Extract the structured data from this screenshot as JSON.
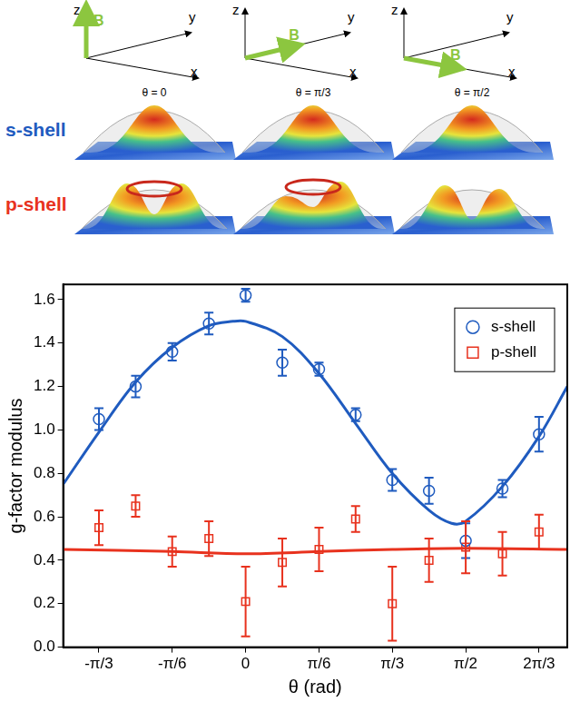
{
  "diagram": {
    "vector_label": "B",
    "axis_labels": [
      "x",
      "y",
      "z"
    ],
    "columns": [
      "θ = 0",
      "θ = π/3",
      "θ = π/2"
    ],
    "rows": [
      {
        "label": "s-shell",
        "color": "#1f5bbf"
      },
      {
        "label": "p-shell",
        "color": "#e8321e"
      }
    ]
  },
  "chart_data": {
    "type": "scatter",
    "x_label": "θ (rad)",
    "y_label": "g-factor modulus",
    "xlim": [
      -1.302,
      2.296
    ],
    "ylim": [
      0,
      1.67
    ],
    "xticks": [
      {
        "value": -1.0472,
        "label": "-π/3"
      },
      {
        "value": -0.5236,
        "label": "-π/6"
      },
      0,
      {
        "value": 0.5236,
        "label": "π/6"
      },
      {
        "value": 1.0472,
        "label": "π/3"
      },
      {
        "value": 1.5708,
        "label": "π/2"
      },
      {
        "value": 2.0944,
        "label": "2π/3"
      }
    ],
    "yticks": [
      {
        "value": 0,
        "label": "0.0"
      },
      0.2,
      0.4,
      0.6,
      0.8,
      {
        "value": 1,
        "label": "1.0"
      },
      1.2,
      1.4,
      1.6
    ],
    "grid": false,
    "legend": "upper right",
    "x": [
      -1.047,
      -0.785,
      -0.524,
      -0.262,
      0,
      0.262,
      0.524,
      0.785,
      1.047,
      1.309,
      1.571,
      1.833,
      2.094
    ],
    "series": [
      {
        "name": "s-shell",
        "color": "#1f5bbf",
        "marker": "circle",
        "values": [
          1.05,
          1.2,
          1.36,
          1.49,
          1.62,
          1.31,
          1.28,
          1.07,
          0.77,
          0.72,
          0.49,
          0.73,
          0.98
        ],
        "errors": [
          0.05,
          0.05,
          0.04,
          0.05,
          0.03,
          0.06,
          0.03,
          0.03,
          0.05,
          0.06,
          0.08,
          0.04,
          0.08
        ],
        "fit": {
          "x": [
            -1.302,
            -1.047,
            -0.785,
            -0.524,
            -0.262,
            -0.09,
            0,
            0.262,
            0.524,
            0.785,
            1.047,
            1.309,
            1.47,
            1.571,
            1.833,
            2.094,
            2.296
          ],
          "values": [
            0.75,
            0.99,
            1.22,
            1.38,
            1.48,
            1.5,
            1.5,
            1.43,
            1.26,
            1.03,
            0.8,
            0.63,
            0.57,
            0.58,
            0.74,
            0.97,
            1.2
          ]
        }
      },
      {
        "name": "p-shell",
        "color": "#e8321e",
        "marker": "square",
        "values": [
          0.55,
          0.65,
          0.44,
          0.5,
          0.21,
          0.39,
          0.45,
          0.59,
          0.2,
          0.4,
          0.46,
          0.43,
          0.53
        ],
        "errors": [
          0.08,
          0.05,
          0.07,
          0.08,
          0.16,
          0.11,
          0.1,
          0.06,
          0.17,
          0.1,
          0.12,
          0.1,
          0.08
        ],
        "fit": {
          "x": [
            -1.302,
            -0.524,
            0,
            0.524,
            1.047,
            1.571,
            2.296
          ],
          "values": [
            0.45,
            0.44,
            0.43,
            0.44,
            0.45,
            0.455,
            0.45
          ]
        }
      }
    ]
  }
}
